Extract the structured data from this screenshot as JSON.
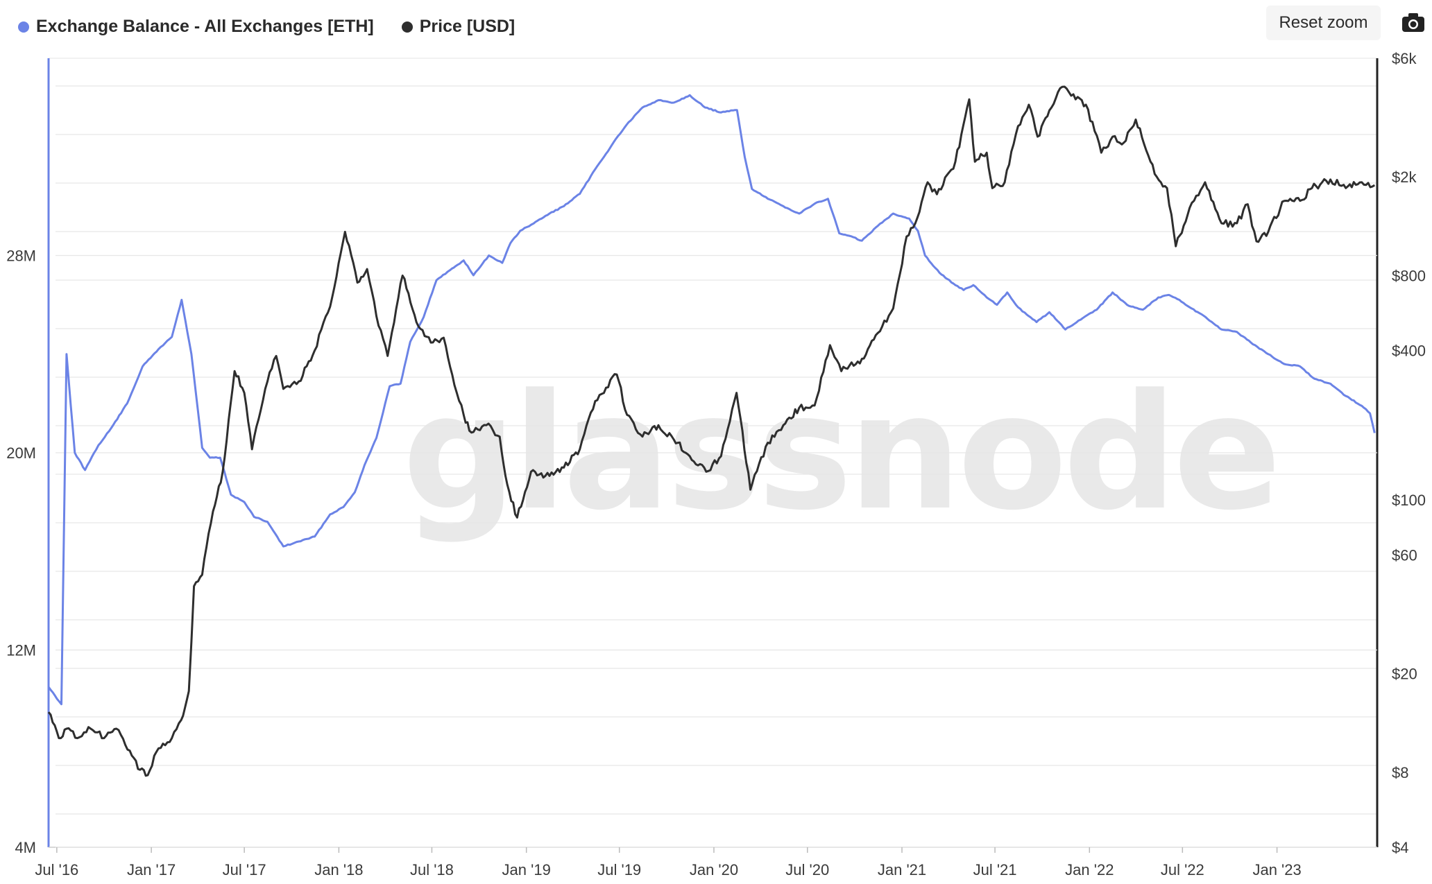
{
  "toolbar": {
    "reset_zoom_label": "Reset zoom",
    "camera_icon": "camera-icon"
  },
  "watermark": "glassnode",
  "colors": {
    "balance": "#6b83e6",
    "price": "#2e2e2e",
    "grid": "#e6e6e6",
    "axis_text": "#3a3a3a"
  },
  "chart_data": {
    "type": "line",
    "title": "",
    "legend_placement": "top-left",
    "grid": true,
    "x_axis": {
      "type": "date",
      "range": [
        "2016-06-15",
        "2023-07-15"
      ],
      "tick_labels": [
        "Jul '16",
        "Jan '17",
        "Jul '17",
        "Jan '18",
        "Jul '18",
        "Jan '19",
        "Jul '19",
        "Jan '20",
        "Jul '20",
        "Jan '21",
        "Jul '21",
        "Jan '22",
        "Jul '22",
        "Jan '23"
      ],
      "tick_dates": [
        "2016-07-01",
        "2017-01-01",
        "2017-07-01",
        "2018-01-01",
        "2018-07-01",
        "2019-01-01",
        "2019-07-01",
        "2020-01-01",
        "2020-07-01",
        "2021-01-01",
        "2021-07-01",
        "2022-01-01",
        "2022-07-01",
        "2023-01-01"
      ]
    },
    "y_left": {
      "scale": "linear",
      "range": [
        4000000,
        36000000
      ],
      "tick_values": [
        4000000,
        12000000,
        20000000,
        28000000
      ],
      "tick_labels": [
        "4M",
        "12M",
        "20M",
        "28M"
      ]
    },
    "y_right": {
      "scale": "log",
      "range": [
        4,
        6000
      ],
      "tick_values": [
        4,
        8,
        20,
        60,
        100,
        400,
        800,
        2000,
        6000
      ],
      "tick_labels": [
        "$4",
        "$8",
        "$20",
        "$60",
        "$100",
        "$400",
        "$800",
        "$2k",
        "$6k"
      ]
    },
    "series": [
      {
        "name": "Exchange Balance - All Exchanges [ETH]",
        "axis": "left",
        "color": "#6b83e6",
        "x": [
          "2016-06-15",
          "2016-07-10",
          "2016-07-20",
          "2016-08-05",
          "2016-08-25",
          "2016-09-20",
          "2016-10-15",
          "2016-11-15",
          "2016-12-15",
          "2017-01-15",
          "2017-02-10",
          "2017-03-01",
          "2017-03-20",
          "2017-04-10",
          "2017-04-25",
          "2017-05-15",
          "2017-06-05",
          "2017-07-01",
          "2017-07-20",
          "2017-08-15",
          "2017-09-15",
          "2017-10-15",
          "2017-11-15",
          "2017-12-15",
          "2018-01-10",
          "2018-02-01",
          "2018-02-20",
          "2018-03-15",
          "2018-04-10",
          "2018-05-01",
          "2018-05-20",
          "2018-06-15",
          "2018-07-10",
          "2018-08-05",
          "2018-09-01",
          "2018-09-20",
          "2018-10-20",
          "2018-11-15",
          "2018-12-01",
          "2018-12-20",
          "2019-01-15",
          "2019-02-15",
          "2019-03-15",
          "2019-04-15",
          "2019-05-15",
          "2019-06-01",
          "2019-06-20",
          "2019-07-15",
          "2019-08-15",
          "2019-09-15",
          "2019-10-15",
          "2019-11-15",
          "2019-12-15",
          "2020-01-15",
          "2020-02-15",
          "2020-03-01",
          "2020-03-15",
          "2020-04-15",
          "2020-05-15",
          "2020-06-15",
          "2020-07-15",
          "2020-08-10",
          "2020-09-01",
          "2020-09-20",
          "2020-10-15",
          "2020-11-15",
          "2020-12-15",
          "2021-01-15",
          "2021-02-01",
          "2021-02-15",
          "2021-03-15",
          "2021-04-15",
          "2021-05-01",
          "2021-05-20",
          "2021-06-15",
          "2021-07-05",
          "2021-07-25",
          "2021-08-15",
          "2021-09-01",
          "2021-09-20",
          "2021-10-15",
          "2021-11-15",
          "2021-12-15",
          "2022-01-15",
          "2022-02-15",
          "2022-03-15",
          "2022-04-15",
          "2022-05-15",
          "2022-06-05",
          "2022-06-25",
          "2022-07-15",
          "2022-08-15",
          "2022-09-15",
          "2022-10-15",
          "2022-11-15",
          "2022-12-15",
          "2023-01-15",
          "2023-02-15",
          "2023-03-15",
          "2023-04-15",
          "2023-05-15",
          "2023-06-15",
          "2023-07-01",
          "2023-07-10"
        ],
        "values": [
          10500000,
          9800000,
          24000000,
          20000000,
          19300000,
          20300000,
          21000000,
          22000000,
          23500000,
          24200000,
          24700000,
          26200000,
          24000000,
          20200000,
          19800000,
          19800000,
          18300000,
          18000000,
          17400000,
          17200000,
          16200000,
          16400000,
          16600000,
          17500000,
          17800000,
          18400000,
          19500000,
          20600000,
          22700000,
          22800000,
          24500000,
          25500000,
          27000000,
          27400000,
          27800000,
          27200000,
          28000000,
          27700000,
          28500000,
          29000000,
          29300000,
          29700000,
          30000000,
          30500000,
          31500000,
          32000000,
          32600000,
          33300000,
          34000000,
          34300000,
          34200000,
          34500000,
          34000000,
          33800000,
          33900000,
          32000000,
          30700000,
          30300000,
          30000000,
          29700000,
          30100000,
          30300000,
          28900000,
          28800000,
          28600000,
          29200000,
          29700000,
          29500000,
          29000000,
          28000000,
          27300000,
          26800000,
          26600000,
          26800000,
          26300000,
          26000000,
          26500000,
          25900000,
          25600000,
          25300000,
          25700000,
          25000000,
          25400000,
          25800000,
          26500000,
          26000000,
          25800000,
          26300000,
          26400000,
          26200000,
          25900000,
          25500000,
          25000000,
          24900000,
          24400000,
          24000000,
          23600000,
          23500000,
          23000000,
          22800000,
          22300000,
          21900000,
          21600000,
          20800000
        ]
      },
      {
        "name": "Price [USD]",
        "axis": "right",
        "color": "#2e2e2e",
        "x": [
          "2016-06-15",
          "2016-07-05",
          "2016-07-20",
          "2016-08-10",
          "2016-09-05",
          "2016-10-01",
          "2016-10-25",
          "2016-11-20",
          "2016-12-10",
          "2016-12-25",
          "2017-01-15",
          "2017-02-10",
          "2017-02-28",
          "2017-03-15",
          "2017-03-25",
          "2017-04-10",
          "2017-05-01",
          "2017-05-20",
          "2017-06-12",
          "2017-07-01",
          "2017-07-16",
          "2017-08-15",
          "2017-09-01",
          "2017-09-15",
          "2017-10-15",
          "2017-11-15",
          "2017-12-15",
          "2018-01-13",
          "2018-02-06",
          "2018-02-25",
          "2018-03-15",
          "2018-04-06",
          "2018-05-05",
          "2018-06-01",
          "2018-06-29",
          "2018-07-24",
          "2018-08-14",
          "2018-09-01",
          "2018-09-12",
          "2018-10-15",
          "2018-11-10",
          "2018-11-25",
          "2018-12-14",
          "2019-01-10",
          "2019-02-15",
          "2019-03-15",
          "2019-04-15",
          "2019-05-15",
          "2019-06-26",
          "2019-07-16",
          "2019-08-15",
          "2019-09-15",
          "2019-10-15",
          "2019-11-15",
          "2019-12-17",
          "2020-01-15",
          "2020-02-14",
          "2020-03-12",
          "2020-04-15",
          "2020-05-15",
          "2020-06-15",
          "2020-07-15",
          "2020-08-14",
          "2020-09-05",
          "2020-10-15",
          "2020-11-15",
          "2020-12-15",
          "2021-01-10",
          "2021-01-27",
          "2021-02-20",
          "2021-03-10",
          "2021-04-15",
          "2021-05-12",
          "2021-05-23",
          "2021-06-15",
          "2021-06-26",
          "2021-07-20",
          "2021-08-15",
          "2021-09-05",
          "2021-09-22",
          "2021-10-15",
          "2021-11-09",
          "2021-12-05",
          "2021-12-25",
          "2022-01-24",
          "2022-02-15",
          "2022-03-05",
          "2022-04-01",
          "2022-05-12",
          "2022-06-01",
          "2022-06-18",
          "2022-07-15",
          "2022-08-14",
          "2022-09-15",
          "2022-10-15",
          "2022-11-05",
          "2022-11-22",
          "2022-12-15",
          "2023-01-15",
          "2023-02-15",
          "2023-03-10",
          "2023-04-15",
          "2023-05-15",
          "2023-06-15",
          "2023-07-10"
        ],
        "values": [
          14,
          11,
          12,
          11,
          12,
          11,
          12,
          9.8,
          8.2,
          7.8,
          10,
          11,
          13,
          17,
          45,
          50,
          90,
          130,
          330,
          270,
          160,
          300,
          380,
          280,
          300,
          400,
          600,
          1200,
          750,
          850,
          550,
          380,
          800,
          520,
          430,
          450,
          290,
          220,
          190,
          200,
          180,
          115,
          85,
          130,
          125,
          135,
          160,
          250,
          320,
          220,
          180,
          200,
          175,
          150,
          130,
          150,
          270,
          110,
          170,
          200,
          235,
          240,
          420,
          330,
          370,
          470,
          590,
          1150,
          1300,
          1900,
          1700,
          2300,
          4100,
          2300,
          2500,
          1800,
          1900,
          3200,
          3900,
          2900,
          3700,
          4600,
          4100,
          3900,
          2500,
          2900,
          2700,
          3400,
          2000,
          1800,
          1050,
          1500,
          1900,
          1300,
          1300,
          1550,
          1100,
          1200,
          1600,
          1600,
          1800,
          1950,
          1800,
          1900,
          1850
        ]
      }
    ]
  }
}
